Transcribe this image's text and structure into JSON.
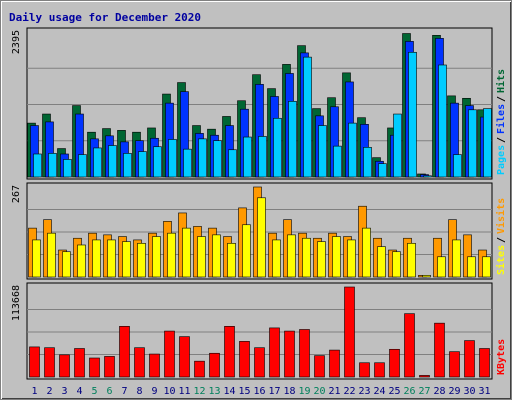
{
  "chart_data": {
    "type": "bar",
    "title": "Daily usage for December 2020",
    "categories": [
      "1",
      "2",
      "3",
      "4",
      "5",
      "6",
      "7",
      "8",
      "9",
      "10",
      "11",
      "12",
      "13",
      "14",
      "15",
      "16",
      "17",
      "18",
      "19",
      "20",
      "21",
      "22",
      "23",
      "24",
      "25",
      "26",
      "27",
      "28",
      "29",
      "30",
      "31"
    ],
    "weekend_days": [
      "5",
      "6",
      "12",
      "13",
      "19",
      "20",
      "26",
      "27"
    ],
    "panels": [
      {
        "id": "hits",
        "max_label": "2395",
        "ylim": [
          0,
          2395
        ],
        "series": [
          {
            "name": "Hits",
            "color": "#006633",
            "values": [
              890,
              1040,
              470,
              1180,
              740,
              800,
              770,
              740,
              810,
              1370,
              1560,
              850,
              790,
              1000,
              1260,
              1690,
              1460,
              1860,
              2170,
              1130,
              1310,
              1720,
              980,
              320,
              810,
              2370,
              50,
              2340,
              1340,
              1300,
              1110
            ]
          },
          {
            "name": "Files",
            "color": "#0033ff",
            "values": [
              850,
              910,
              380,
              1040,
              630,
              680,
              580,
              600,
              640,
              1220,
              1410,
              720,
              690,
              850,
              1120,
              1530,
              1330,
              1710,
              2050,
              1010,
              1160,
              1570,
              870,
              260,
              690,
              2240,
              40,
              2290,
              1220,
              1180,
              990
            ]
          },
          {
            "name": "Pages",
            "color": "#00ccff",
            "values": [
              380,
              390,
              290,
              370,
              480,
              520,
              390,
              420,
              500,
              620,
              460,
              630,
              600,
              450,
              660,
              670,
              970,
              1250,
              1980,
              850,
              510,
              890,
              490,
              220,
              1040,
              2060,
              20,
              1850,
              370,
              1110,
              1130
            ]
          }
        ]
      },
      {
        "id": "visits",
        "max_label": "267",
        "ylim": [
          0,
          267
        ],
        "series": [
          {
            "name": "Visits",
            "color": "#ff9900",
            "values": [
              145,
              170,
              80,
              115,
              130,
              125,
              120,
              110,
              130,
              165,
              190,
              150,
              145,
              120,
              205,
              267,
              130,
              170,
              130,
              115,
              130,
              120,
              210,
              115,
              80,
              115,
              5,
              115,
              170,
              125,
              80
            ]
          },
          {
            "name": "Sites",
            "color": "#ffff00",
            "values": [
              110,
              130,
              75,
              95,
              110,
              110,
              105,
              100,
              120,
              130,
              145,
              120,
              125,
              100,
              155,
              235,
              110,
              125,
              115,
              105,
              120,
              110,
              145,
              90,
              75,
              100,
              5,
              60,
              110,
              60,
              60
            ]
          }
        ]
      },
      {
        "id": "kbytes",
        "max_label": "113668",
        "ylim": [
          0,
          113668
        ],
        "series": [
          {
            "name": "KBytes",
            "color": "#ff0000",
            "values": [
              38000,
              37000,
              28000,
              36000,
              24000,
              26000,
              64000,
              37000,
              29000,
              58000,
              51000,
              20000,
              30000,
              64000,
              45000,
              37000,
              62000,
              58000,
              60000,
              27000,
              34000,
              113668,
              18000,
              18000,
              35000,
              80000,
              2000,
              68000,
              32000,
              46000,
              36000
            ]
          }
        ]
      }
    ],
    "axis_label_colors": {
      "default": "#000080",
      "weekend": "#00805c"
    }
  }
}
